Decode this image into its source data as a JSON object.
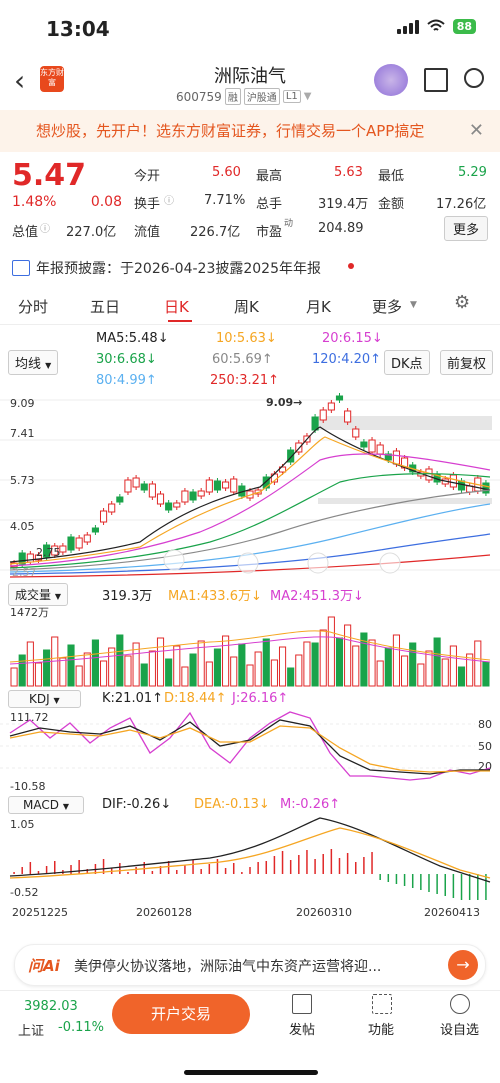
{
  "status": {
    "time": "13:04",
    "battery": "88"
  },
  "header": {
    "title": "洲际油气",
    "code": "600759",
    "tags": [
      "融",
      "沪股通",
      "L1"
    ],
    "logo_text": "东方财富"
  },
  "banner": {
    "text": "想炒股，先开户！选东方财富证券，行情交易一个APP搞定"
  },
  "quote": {
    "price": "5.47",
    "change_pct": "1.48%",
    "change": "0.08",
    "rows": [
      [
        {
          "label": "今开",
          "value": "5.60",
          "color": "red"
        },
        {
          "label": "最高",
          "value": "5.63",
          "color": "red"
        },
        {
          "label": "最低",
          "value": "5.29",
          "color": "green"
        }
      ],
      [
        {
          "label": "换手",
          "value": "7.71%",
          "color": "dark"
        },
        {
          "label": "总手",
          "value": "319.4万",
          "color": "dark"
        },
        {
          "label": "金额",
          "value": "17.26亿",
          "color": "dark"
        }
      ],
      [
        {
          "label": "流值",
          "value": "226.7亿",
          "color": "dark"
        },
        {
          "label": "市盈",
          "value": "204.89",
          "color": "dark"
        }
      ]
    ],
    "total_value_label": "总值",
    "total_value": "227.0亿",
    "pe_sup": "动",
    "more": "更多"
  },
  "notice": {
    "text": "年报预披露：于2026-04-23披露2025年年报"
  },
  "tabs": [
    "分时",
    "五日",
    "日K",
    "周K",
    "月K",
    "更多"
  ],
  "ma": {
    "selector": "均线",
    "dk": "DK点",
    "adj": "前复权",
    "ma5": "MA5:5.48↓",
    "ma10": "10:5.63↓",
    "ma20": "20:6.15↓",
    "ma30": "30:6.68↓",
    "ma60": "60:5.69↑",
    "ma120": "120:4.20↑",
    "ma80": "80:4.99↑",
    "ma250": "250:3.21↑",
    "ymax": "9.09",
    "y2": "7.41",
    "y3": "5.73",
    "y4": "4.05",
    "high_mark": "9.09→",
    "ymin": "2.57",
    "low_mark": "2.75"
  },
  "vol": {
    "selector": "成交量",
    "value": "319.3万",
    "ma1": "MA1:433.6万↓",
    "ma2": "MA2:451.3万↓",
    "ymax": "1472万"
  },
  "kdj": {
    "selector": "KDJ",
    "k": "K:21.01↑",
    "d": "D:18.44↑",
    "j": "J:26.16↑",
    "ymax": "111.72",
    "ymin": "-10.58",
    "l80": "80",
    "l50": "50",
    "l20": "20"
  },
  "macd": {
    "selector": "MACD",
    "dif": "DIF:-0.26↓",
    "dea": "DEA:-0.13↓",
    "m": "M:-0.26↑",
    "ymax": "1.05",
    "ymin": "-0.52"
  },
  "dates": [
    "20251225",
    "20260128",
    "20260310",
    "20260413"
  ],
  "ai": {
    "logo": "问Ai",
    "text": "美伊停火协议落地，洲际油气中东资产运营将迎..."
  },
  "bottom": {
    "index_value": "3982.03",
    "index_name": "上证",
    "index_chg": "-0.11%",
    "trade": "开户交易",
    "items": [
      "发帖",
      "功能",
      "设自选"
    ]
  },
  "colors": {
    "red": "#e02828",
    "green": "#1aa34a",
    "orange": "#f5a623",
    "purple": "#d63fd0",
    "blue": "#3d6ee0"
  }
}
